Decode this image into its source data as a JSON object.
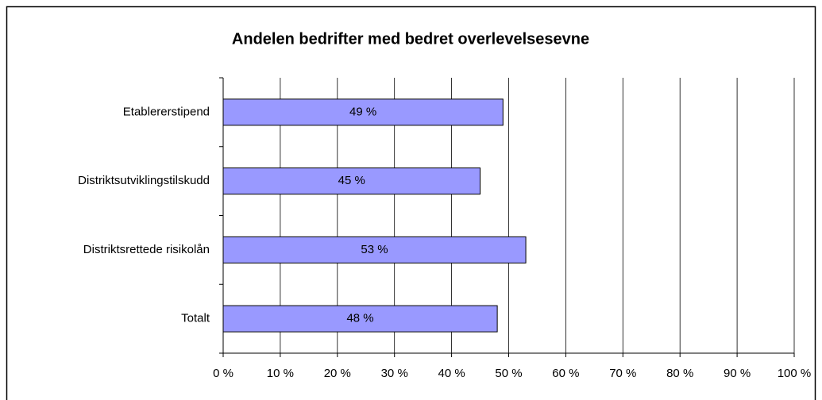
{
  "chart_data": {
    "type": "bar",
    "orientation": "horizontal",
    "title": "Andelen bedrifter med bedret overlevelsesevne",
    "categories": [
      "Etablererstipend",
      "Distriktsutviklingstilskudd",
      "Distriktsrettede risikolån",
      "Totalt"
    ],
    "values": [
      49,
      45,
      53,
      48
    ],
    "value_labels": [
      "49 %",
      "45 %",
      "53 %",
      "48 %"
    ],
    "color": "#9999ff",
    "xlim": [
      0,
      100
    ],
    "xticks": [
      {
        "value": 0,
        "label": "0 %"
      },
      {
        "value": 10,
        "label": "10 %"
      },
      {
        "value": 20,
        "label": "20 %"
      },
      {
        "value": 30,
        "label": "30 %"
      },
      {
        "value": 40,
        "label": "40 %"
      },
      {
        "value": 50,
        "label": "50 %"
      },
      {
        "value": 60,
        "label": "60 %"
      },
      {
        "value": 70,
        "label": "70 %"
      },
      {
        "value": 80,
        "label": "80 %"
      },
      {
        "value": 90,
        "label": "90 %"
      },
      {
        "value": 100,
        "label": "100 %"
      }
    ],
    "grid": true
  }
}
